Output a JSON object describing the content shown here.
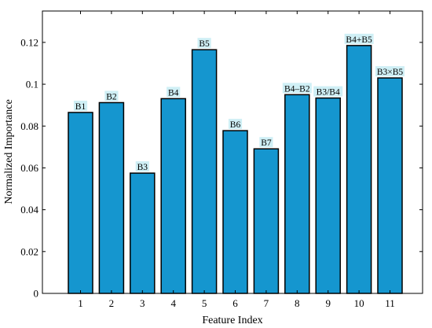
{
  "chart_data": {
    "type": "bar",
    "xlabel": "Feature Index",
    "ylabel": "Normalized Importance",
    "categories": [
      "1",
      "2",
      "3",
      "4",
      "5",
      "6",
      "7",
      "8",
      "9",
      "10",
      "11"
    ],
    "values": [
      0.0865,
      0.0912,
      0.0575,
      0.0931,
      0.1165,
      0.0778,
      0.0691,
      0.095,
      0.0934,
      0.1185,
      0.103
    ],
    "data_labels": [
      "B1",
      "B2",
      "B3",
      "B4",
      "B5",
      "B6",
      "B7",
      "B4–B2",
      "B3/B4",
      "B4+B5",
      "B3×B5"
    ],
    "y_ticks": [
      "0",
      "0.02",
      "0.04",
      "0.06",
      "0.08",
      "0.1",
      "0.12"
    ],
    "ylim": [
      0,
      0.135
    ],
    "grid": false,
    "colors": {
      "bar_fill": "#1596cf",
      "bar_edge": "#000000",
      "label_highlight": "#cfeff5"
    }
  }
}
